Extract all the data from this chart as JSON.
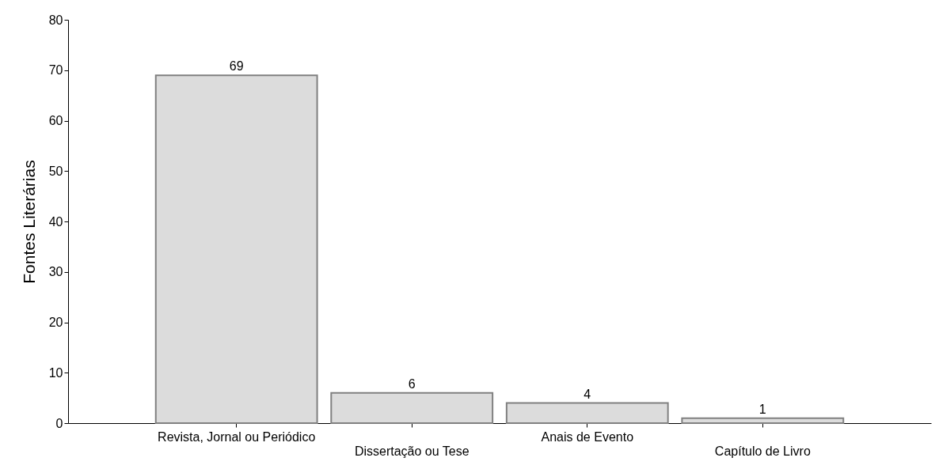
{
  "chart_data": {
    "type": "bar",
    "ylabel": "Fontes Literárias",
    "categories": [
      "Revista, Jornal ou Periódico",
      "Dissertação ou Tese",
      "Anais de Evento",
      "Capítulo de Livro"
    ],
    "values": [
      69,
      6,
      4,
      1
    ],
    "color": "#dcdcdc",
    "ylim": [
      0,
      80
    ],
    "yticks": [
      0,
      10,
      20,
      30,
      40,
      50,
      60,
      70,
      80
    ],
    "grid": false,
    "data_labels": true
  }
}
